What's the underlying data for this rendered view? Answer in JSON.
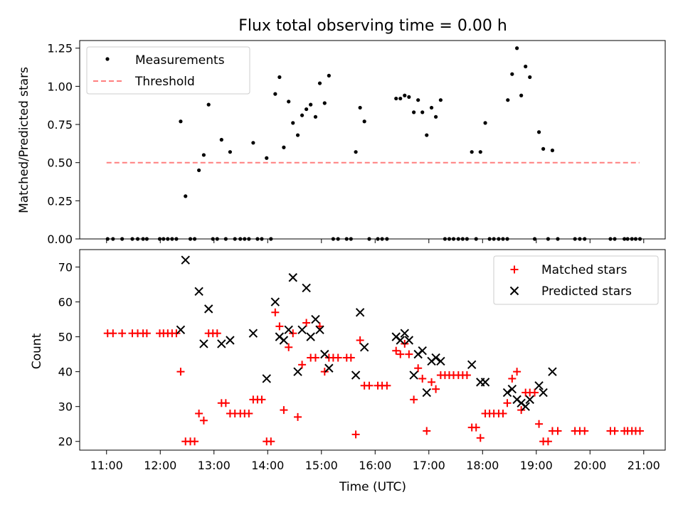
{
  "title": "Flux total observing time = 0.00 h",
  "xlabel": "Time (UTC)",
  "colors": {
    "measurement": "#000000",
    "threshold": "#ff7f7f",
    "matched": "#ff0000",
    "predicted": "#000000"
  },
  "chart_data": [
    {
      "type": "scatter",
      "panel": "top",
      "ylabel": "Matched/Predicted stars",
      "xlim": [
        10.5,
        21.4
      ],
      "ylim": [
        0,
        1.3
      ],
      "yticks": [
        0.0,
        0.25,
        0.5,
        0.75,
        1.0,
        1.25
      ],
      "ytick_labels": [
        "0.00",
        "0.25",
        "0.50",
        "0.75",
        "1.00",
        "1.25"
      ],
      "legend": {
        "position": "top-left",
        "entries": [
          "Measurements",
          "Threshold"
        ]
      },
      "threshold": {
        "name": "Threshold",
        "value": 0.5,
        "x_range": [
          11.0,
          20.92
        ]
      },
      "series": [
        {
          "name": "Measurements",
          "points": [
            [
              11.02,
              0
            ],
            [
              11.12,
              0
            ],
            [
              11.29,
              0
            ],
            [
              11.48,
              0
            ],
            [
              11.58,
              0
            ],
            [
              11.68,
              0
            ],
            [
              11.75,
              0
            ],
            [
              11.99,
              0
            ],
            [
              12.06,
              0
            ],
            [
              12.14,
              0
            ],
            [
              12.22,
              0
            ],
            [
              12.3,
              0
            ],
            [
              12.38,
              0.77
            ],
            [
              12.47,
              0.28
            ],
            [
              12.56,
              0
            ],
            [
              12.64,
              0
            ],
            [
              12.72,
              0.45
            ],
            [
              12.81,
              0.55
            ],
            [
              12.9,
              0.88
            ],
            [
              12.98,
              0
            ],
            [
              13.06,
              0
            ],
            [
              13.14,
              0.65
            ],
            [
              13.22,
              0
            ],
            [
              13.3,
              0.57
            ],
            [
              13.39,
              0
            ],
            [
              13.49,
              0
            ],
            [
              13.57,
              0
            ],
            [
              13.65,
              0
            ],
            [
              13.73,
              0.63
            ],
            [
              13.81,
              0
            ],
            [
              13.89,
              0
            ],
            [
              13.98,
              0.53
            ],
            [
              14.06,
              0
            ],
            [
              14.14,
              0.95
            ],
            [
              14.22,
              1.06
            ],
            [
              14.3,
              0.6
            ],
            [
              14.39,
              0.9
            ],
            [
              14.47,
              0.76
            ],
            [
              14.56,
              0.68
            ],
            [
              14.64,
              0.81
            ],
            [
              14.72,
              0.85
            ],
            [
              14.8,
              0.88
            ],
            [
              14.89,
              0.8
            ],
            [
              14.97,
              1.02
            ],
            [
              15.06,
              0.89
            ],
            [
              15.14,
              1.07
            ],
            [
              15.22,
              0
            ],
            [
              15.31,
              0
            ],
            [
              15.47,
              0
            ],
            [
              15.55,
              0
            ],
            [
              15.64,
              0.57
            ],
            [
              15.72,
              0.86
            ],
            [
              15.8,
              0.77
            ],
            [
              15.89,
              0
            ],
            [
              16.05,
              0
            ],
            [
              16.13,
              0
            ],
            [
              16.22,
              0
            ],
            [
              16.39,
              0.92
            ],
            [
              16.47,
              0.92
            ],
            [
              16.55,
              0.94
            ],
            [
              16.63,
              0.93
            ],
            [
              16.72,
              0.83
            ],
            [
              16.8,
              0.91
            ],
            [
              16.88,
              0.83
            ],
            [
              16.96,
              0.68
            ],
            [
              17.05,
              0.86
            ],
            [
              17.13,
              0.8
            ],
            [
              17.22,
              0.91
            ],
            [
              17.3,
              0
            ],
            [
              17.38,
              0
            ],
            [
              17.46,
              0
            ],
            [
              17.55,
              0
            ],
            [
              17.63,
              0
            ],
            [
              17.71,
              0
            ],
            [
              17.8,
              0.57
            ],
            [
              17.88,
              0
            ],
            [
              17.96,
              0.57
            ],
            [
              18.05,
              0.76
            ],
            [
              18.13,
              0
            ],
            [
              18.21,
              0
            ],
            [
              18.3,
              0
            ],
            [
              18.38,
              0
            ],
            [
              18.46,
              0
            ],
            [
              18.47,
              0.91
            ],
            [
              18.55,
              1.08
            ],
            [
              18.64,
              1.25
            ],
            [
              18.72,
              0.94
            ],
            [
              18.8,
              1.13
            ],
            [
              18.88,
              1.06
            ],
            [
              18.97,
              0
            ],
            [
              19.05,
              0.7
            ],
            [
              19.13,
              0.59
            ],
            [
              19.22,
              0
            ],
            [
              19.3,
              0.58
            ],
            [
              19.4,
              0
            ],
            [
              19.72,
              0
            ],
            [
              19.81,
              0
            ],
            [
              19.9,
              0
            ],
            [
              20.38,
              0
            ],
            [
              20.46,
              0
            ],
            [
              20.64,
              0
            ],
            [
              20.7,
              0
            ],
            [
              20.78,
              0
            ],
            [
              20.85,
              0
            ],
            [
              20.93,
              0
            ]
          ]
        }
      ]
    },
    {
      "type": "scatter",
      "panel": "bottom",
      "ylabel": "Count",
      "xlim": [
        10.5,
        21.4
      ],
      "ylim": [
        17.5,
        75
      ],
      "yticks": [
        20,
        30,
        40,
        50,
        60,
        70
      ],
      "ytick_labels": [
        "20",
        "30",
        "40",
        "50",
        "60",
        "70"
      ],
      "xticks": [
        11,
        12,
        13,
        14,
        15,
        16,
        17,
        18,
        19,
        20,
        21
      ],
      "xtick_labels": [
        "11:00",
        "12:00",
        "13:00",
        "14:00",
        "15:00",
        "16:00",
        "17:00",
        "18:00",
        "19:00",
        "20:00",
        "21:00"
      ],
      "legend": {
        "position": "top-right",
        "entries": [
          "Matched stars",
          "Predicted stars"
        ]
      },
      "series": [
        {
          "name": "Matched stars",
          "points": [
            [
              11.02,
              51
            ],
            [
              11.12,
              51
            ],
            [
              11.29,
              51
            ],
            [
              11.48,
              51
            ],
            [
              11.58,
              51
            ],
            [
              11.68,
              51
            ],
            [
              11.75,
              51
            ],
            [
              11.99,
              51
            ],
            [
              12.06,
              51
            ],
            [
              12.14,
              51
            ],
            [
              12.22,
              51
            ],
            [
              12.3,
              51
            ],
            [
              12.38,
              40
            ],
            [
              12.47,
              20
            ],
            [
              12.56,
              20
            ],
            [
              12.64,
              20
            ],
            [
              12.72,
              28
            ],
            [
              12.81,
              26
            ],
            [
              12.9,
              51
            ],
            [
              12.98,
              51
            ],
            [
              13.06,
              51
            ],
            [
              13.14,
              31
            ],
            [
              13.22,
              31
            ],
            [
              13.3,
              28
            ],
            [
              13.39,
              28
            ],
            [
              13.49,
              28
            ],
            [
              13.57,
              28
            ],
            [
              13.65,
              28
            ],
            [
              13.73,
              32
            ],
            [
              13.81,
              32
            ],
            [
              13.89,
              32
            ],
            [
              13.98,
              20
            ],
            [
              14.06,
              20
            ],
            [
              14.14,
              57
            ],
            [
              14.22,
              53
            ],
            [
              14.3,
              29
            ],
            [
              14.39,
              47
            ],
            [
              14.47,
              51
            ],
            [
              14.56,
              27
            ],
            [
              14.64,
              42
            ],
            [
              14.72,
              54
            ],
            [
              14.8,
              44
            ],
            [
              14.89,
              44
            ],
            [
              14.97,
              53
            ],
            [
              15.06,
              40
            ],
            [
              15.14,
              44
            ],
            [
              15.22,
              44
            ],
            [
              15.31,
              44
            ],
            [
              15.47,
              44
            ],
            [
              15.55,
              44
            ],
            [
              15.64,
              22
            ],
            [
              15.72,
              49
            ],
            [
              15.8,
              36
            ],
            [
              15.89,
              36
            ],
            [
              16.05,
              36
            ],
            [
              16.13,
              36
            ],
            [
              16.22,
              36
            ],
            [
              16.39,
              46
            ],
            [
              16.47,
              45
            ],
            [
              16.55,
              48
            ],
            [
              16.63,
              45
            ],
            [
              16.72,
              32
            ],
            [
              16.8,
              41
            ],
            [
              16.88,
              38
            ],
            [
              16.96,
              23
            ],
            [
              17.05,
              37
            ],
            [
              17.13,
              35
            ],
            [
              17.22,
              39
            ],
            [
              17.3,
              39
            ],
            [
              17.38,
              39
            ],
            [
              17.46,
              39
            ],
            [
              17.55,
              39
            ],
            [
              17.63,
              39
            ],
            [
              17.71,
              39
            ],
            [
              17.8,
              24
            ],
            [
              17.88,
              24
            ],
            [
              17.96,
              21
            ],
            [
              18.05,
              28
            ],
            [
              18.13,
              28
            ],
            [
              18.21,
              28
            ],
            [
              18.3,
              28
            ],
            [
              18.38,
              28
            ],
            [
              18.46,
              31
            ],
            [
              18.55,
              38
            ],
            [
              18.64,
              40
            ],
            [
              18.72,
              29
            ],
            [
              18.8,
              34
            ],
            [
              18.88,
              34
            ],
            [
              18.97,
              34
            ],
            [
              19.05,
              25
            ],
            [
              19.13,
              20
            ],
            [
              19.22,
              20
            ],
            [
              19.3,
              23
            ],
            [
              19.4,
              23
            ],
            [
              19.72,
              23
            ],
            [
              19.81,
              23
            ],
            [
              19.9,
              23
            ],
            [
              20.38,
              23
            ],
            [
              20.46,
              23
            ],
            [
              20.64,
              23
            ],
            [
              20.7,
              23
            ],
            [
              20.78,
              23
            ],
            [
              20.85,
              23
            ],
            [
              20.93,
              23
            ]
          ]
        },
        {
          "name": "Predicted stars",
          "points": [
            [
              12.38,
              52
            ],
            [
              12.47,
              72
            ],
            [
              12.72,
              63
            ],
            [
              12.81,
              48
            ],
            [
              12.9,
              58
            ],
            [
              13.14,
              48
            ],
            [
              13.3,
              49
            ],
            [
              13.73,
              51
            ],
            [
              13.98,
              38
            ],
            [
              14.14,
              60
            ],
            [
              14.22,
              50
            ],
            [
              14.3,
              49
            ],
            [
              14.39,
              52
            ],
            [
              14.47,
              67
            ],
            [
              14.56,
              40
            ],
            [
              14.64,
              52
            ],
            [
              14.72,
              64
            ],
            [
              14.8,
              50
            ],
            [
              14.89,
              55
            ],
            [
              14.97,
              52
            ],
            [
              15.06,
              45
            ],
            [
              15.14,
              41
            ],
            [
              15.64,
              39
            ],
            [
              15.72,
              57
            ],
            [
              15.8,
              47
            ],
            [
              16.39,
              50
            ],
            [
              16.47,
              49
            ],
            [
              16.55,
              51
            ],
            [
              16.63,
              49
            ],
            [
              16.72,
              39
            ],
            [
              16.8,
              45
            ],
            [
              16.88,
              46
            ],
            [
              16.96,
              34
            ],
            [
              17.05,
              43
            ],
            [
              17.13,
              44
            ],
            [
              17.22,
              43
            ],
            [
              17.8,
              42
            ],
            [
              17.96,
              37
            ],
            [
              18.05,
              37
            ],
            [
              18.46,
              34
            ],
            [
              18.55,
              35
            ],
            [
              18.64,
              32
            ],
            [
              18.72,
              31
            ],
            [
              18.8,
              30
            ],
            [
              18.88,
              32
            ],
            [
              19.05,
              36
            ],
            [
              19.13,
              34
            ],
            [
              19.3,
              40
            ]
          ]
        }
      ]
    }
  ]
}
